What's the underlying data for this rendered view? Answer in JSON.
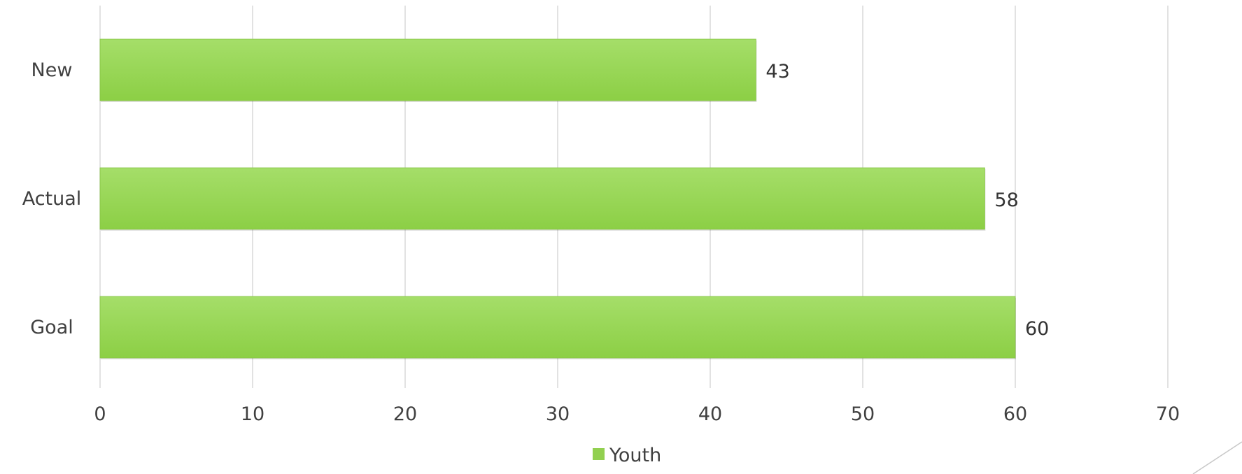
{
  "chart_data": {
    "type": "bar",
    "orientation": "horizontal",
    "categories": [
      "New",
      "Actual",
      "Goal"
    ],
    "series": [
      {
        "name": "Youth",
        "values": [
          43,
          58,
          60
        ]
      }
    ],
    "xlim": [
      0,
      70
    ],
    "x_ticks": [
      0,
      10,
      20,
      30,
      40,
      50,
      60,
      70
    ],
    "grid": "vertical",
    "legend": "bottom",
    "colors": {
      "bar": "#92d050",
      "bar_light": "#a3dc6a",
      "grid": "#d9d9d9",
      "text": "#404040"
    }
  }
}
